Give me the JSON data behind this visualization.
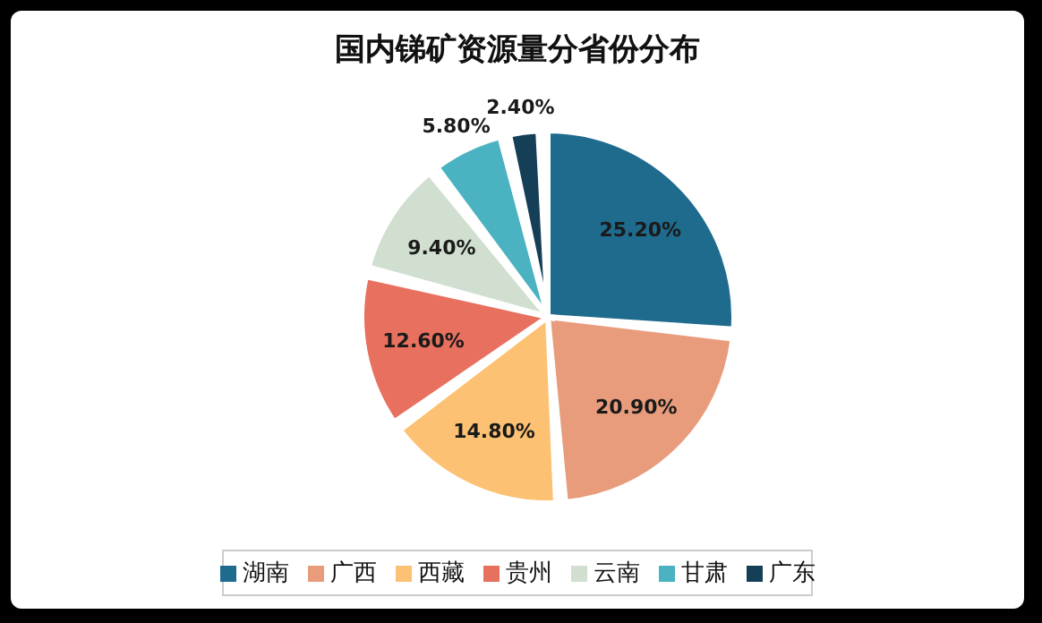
{
  "chart_data": {
    "type": "pie",
    "title": "国内锑矿资源量分省份分布",
    "categories": [
      "湖南",
      "广西",
      "西藏",
      "贵州",
      "云南",
      "甘肃",
      "广东"
    ],
    "values": [
      25.2,
      20.9,
      14.8,
      12.6,
      9.4,
      5.8,
      2.4
    ],
    "value_labels": [
      "25.20%",
      "20.90%",
      "14.80%",
      "12.60%",
      "9.40%",
      "5.80%",
      "2.40%"
    ],
    "colors": [
      "#1f6b8e",
      "#e89c7c",
      "#fdc173",
      "#e8705f",
      "#d0dfcf",
      "#4ab2c0",
      "#143f57"
    ],
    "legend": "bottom"
  }
}
